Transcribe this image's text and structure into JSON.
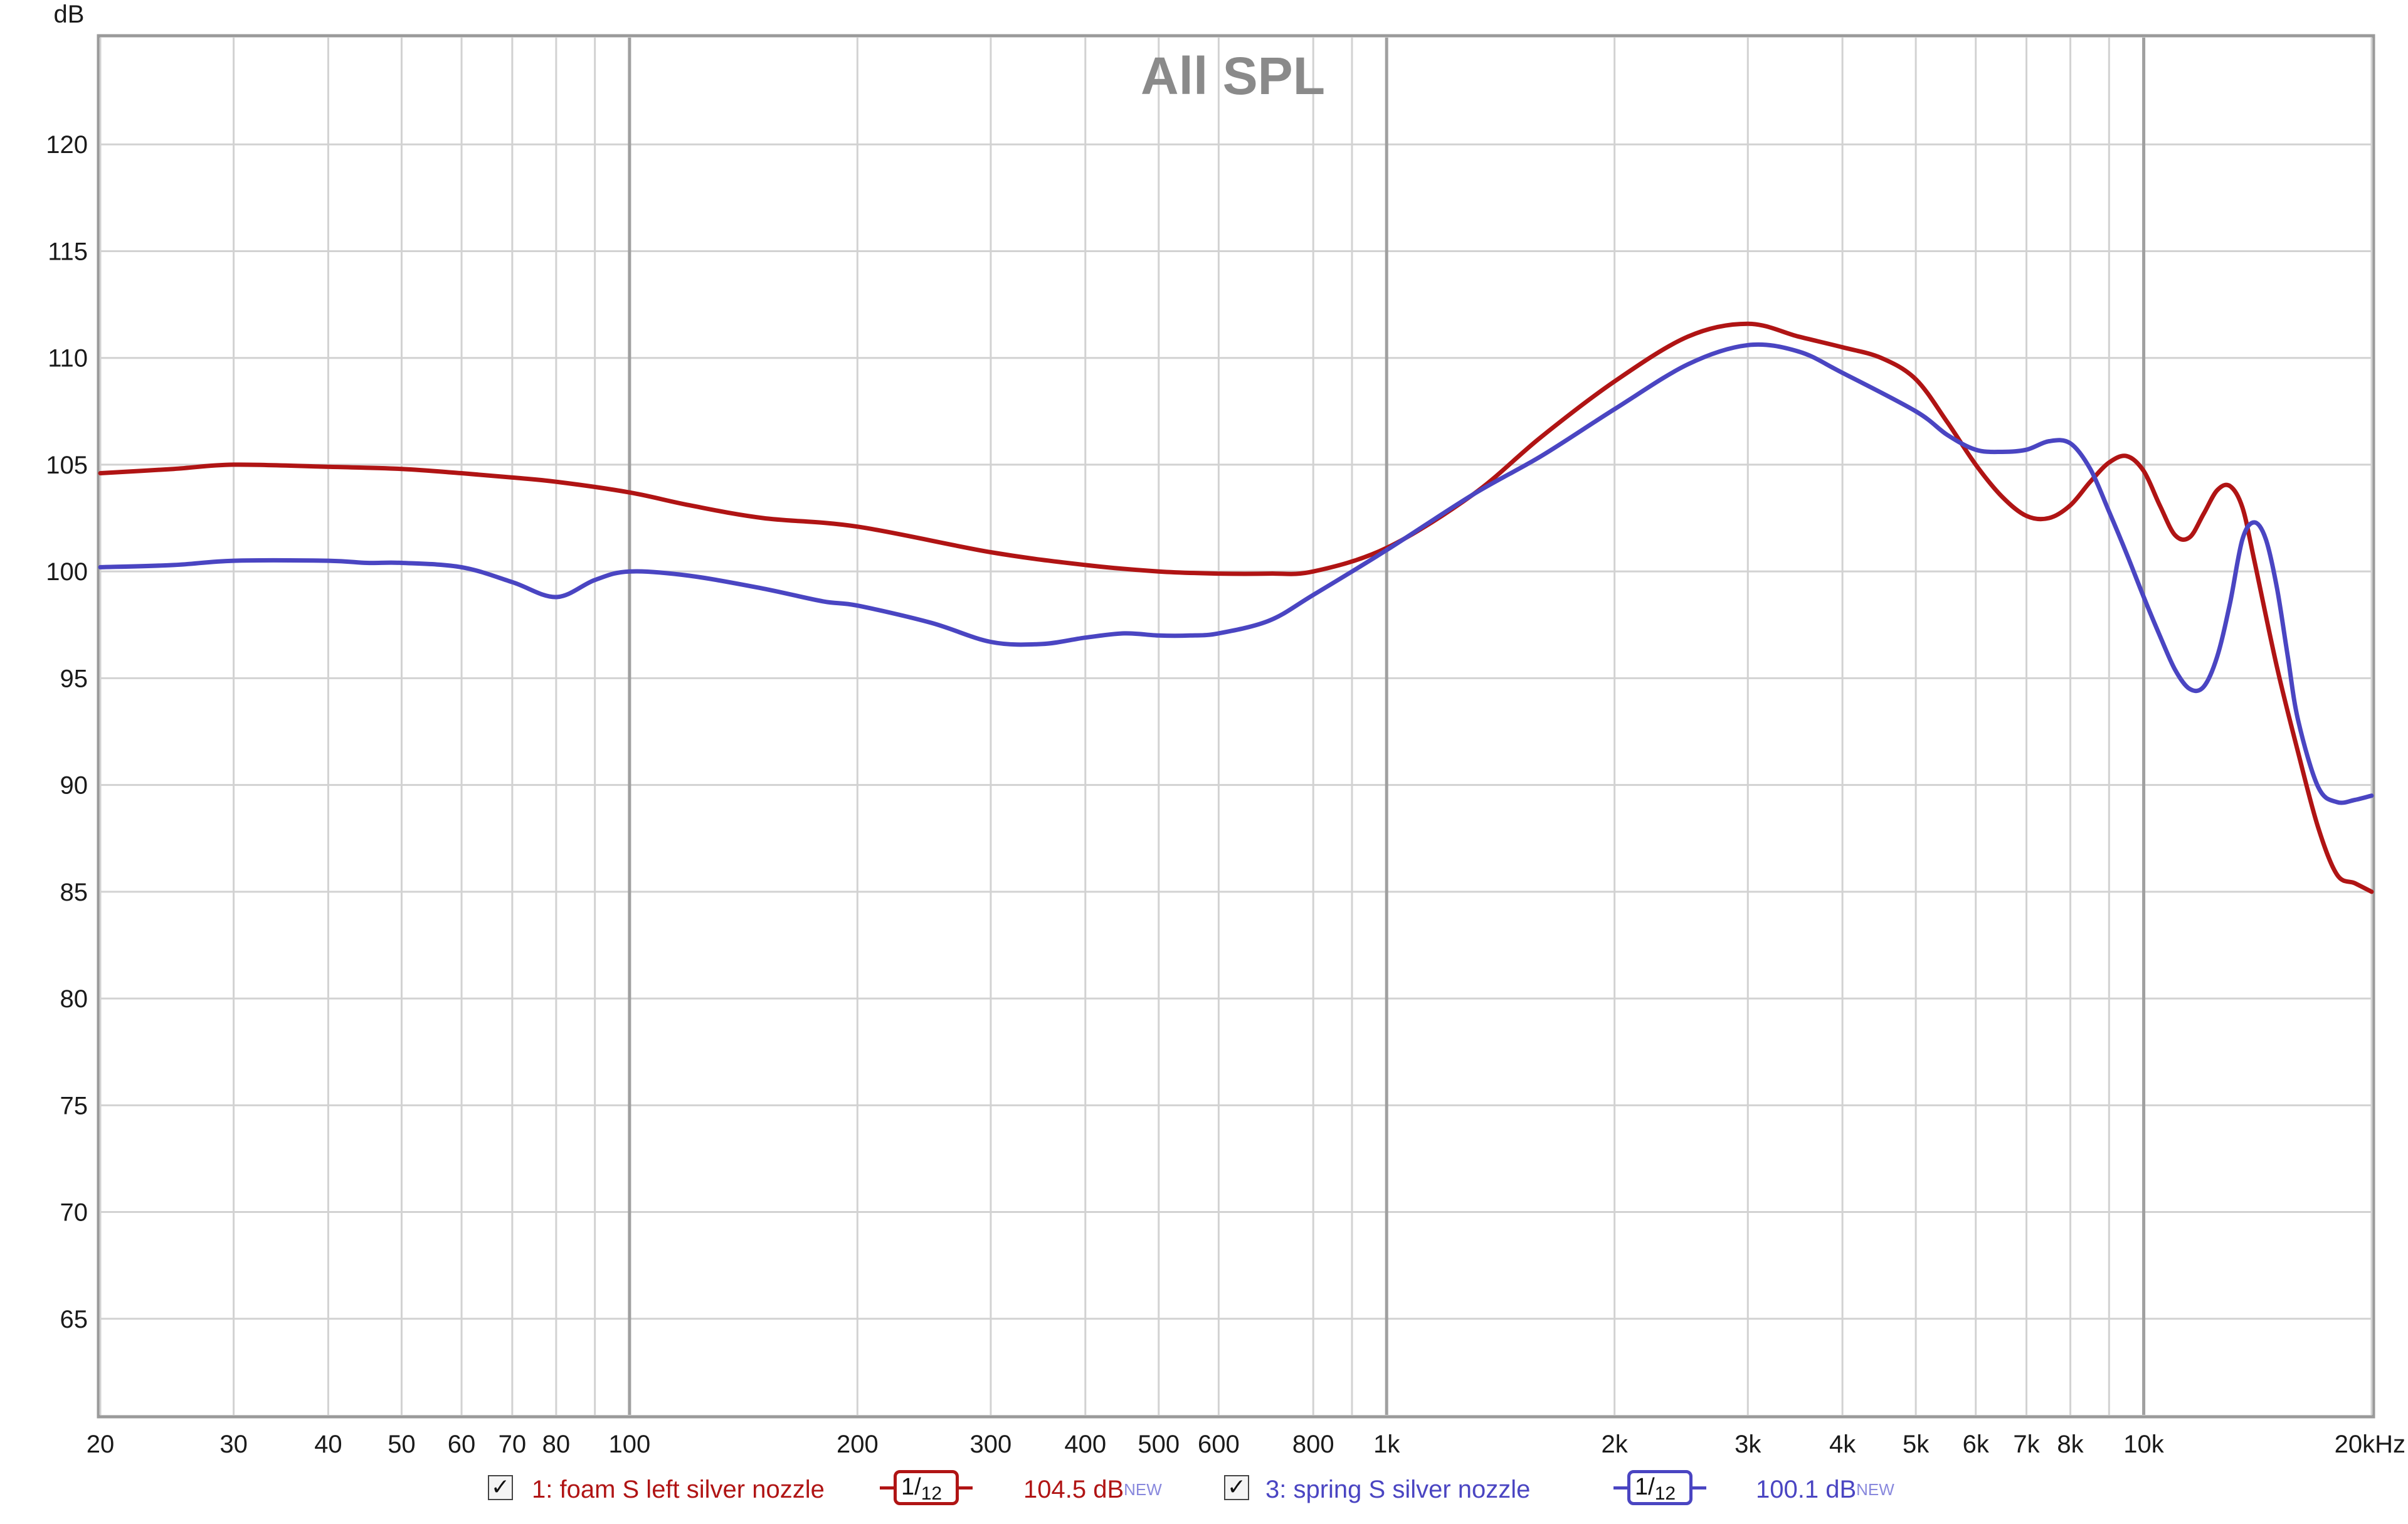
{
  "chart_data": {
    "type": "line",
    "title": "All SPL",
    "y_unit_label": "dB",
    "x_scale": "log",
    "xlim": [
      20,
      20000
    ],
    "ylim": [
      60.5,
      125
    ],
    "grid": true,
    "x_ticks": [
      {
        "v": 20,
        "label": "20"
      },
      {
        "v": 30,
        "label": "30"
      },
      {
        "v": 40,
        "label": "40"
      },
      {
        "v": 50,
        "label": "50"
      },
      {
        "v": 60,
        "label": "60"
      },
      {
        "v": 70,
        "label": "70"
      },
      {
        "v": 80,
        "label": "80"
      },
      {
        "v": 100,
        "label": "100"
      },
      {
        "v": 200,
        "label": "200"
      },
      {
        "v": 300,
        "label": "300"
      },
      {
        "v": 400,
        "label": "400"
      },
      {
        "v": 500,
        "label": "500"
      },
      {
        "v": 600,
        "label": "600"
      },
      {
        "v": 800,
        "label": "800"
      },
      {
        "v": 1000,
        "label": "1k"
      },
      {
        "v": 2000,
        "label": "2k"
      },
      {
        "v": 3000,
        "label": "3k"
      },
      {
        "v": 4000,
        "label": "4k"
      },
      {
        "v": 5000,
        "label": "5k"
      },
      {
        "v": 6000,
        "label": "6k"
      },
      {
        "v": 7000,
        "label": "7k"
      },
      {
        "v": 8000,
        "label": "8k"
      },
      {
        "v": 10000,
        "label": "10k"
      },
      {
        "v": 20000,
        "label": "20kHz"
      }
    ],
    "x_minor_grid": [
      90,
      900,
      9000
    ],
    "x_major_grid": [
      100,
      1000,
      10000
    ],
    "y_ticks": [
      65,
      70,
      75,
      80,
      85,
      90,
      95,
      100,
      105,
      110,
      115,
      120
    ],
    "series": [
      {
        "name": "1: foam S left silver nozzle",
        "color": "#b01414",
        "smoothing_num": "1",
        "smoothing_den": "12",
        "level": "104.5 dB",
        "level_tag": "NEW",
        "x": [
          20,
          25,
          30,
          40,
          50,
          60,
          70,
          80,
          100,
          120,
          150,
          200,
          300,
          400,
          500,
          600,
          700,
          800,
          1000,
          1300,
          1600,
          2000,
          2500,
          3000,
          3500,
          4000,
          4500,
          5000,
          5500,
          6000,
          6500,
          7000,
          7500,
          8000,
          8500,
          9000,
          9500,
          10000,
          10500,
          11000,
          11500,
          12000,
          12500,
          13000,
          13500,
          14000,
          15000,
          16000,
          17000,
          18000,
          19000,
          20000
        ],
        "y": [
          104.6,
          104.8,
          105.0,
          104.9,
          104.8,
          104.6,
          104.4,
          104.2,
          103.7,
          103.1,
          102.5,
          102.1,
          100.9,
          100.3,
          100.0,
          99.9,
          99.9,
          100.0,
          101.1,
          103.6,
          106.3,
          108.9,
          111.0,
          111.6,
          111.0,
          110.5,
          110.0,
          109.0,
          107.0,
          105.0,
          103.5,
          102.6,
          102.5,
          103.1,
          104.2,
          105.1,
          105.4,
          104.7,
          103.1,
          101.7,
          101.6,
          102.7,
          103.8,
          104.0,
          103.0,
          100.5,
          95.5,
          91.5,
          88.0,
          85.8,
          85.4,
          85.0
        ]
      },
      {
        "name": "3: spring S silver nozzle",
        "color": "#4a45c2",
        "smoothing_num": "1",
        "smoothing_den": "12",
        "level": "100.1 dB",
        "level_tag": "NEW",
        "x": [
          20,
          25,
          30,
          40,
          45,
          50,
          60,
          70,
          80,
          90,
          100,
          120,
          150,
          180,
          200,
          250,
          300,
          350,
          400,
          450,
          500,
          550,
          600,
          700,
          800,
          1000,
          1300,
          1600,
          2000,
          2500,
          3000,
          3500,
          4000,
          5000,
          5500,
          6000,
          6500,
          7000,
          7500,
          8000,
          8500,
          9000,
          9500,
          10000,
          10500,
          11000,
          11500,
          12000,
          12500,
          13000,
          13500,
          14000,
          14500,
          15000,
          15500,
          16000,
          17000,
          18000,
          19000,
          20000
        ],
        "y": [
          100.2,
          100.3,
          100.5,
          100.5,
          100.4,
          100.4,
          100.2,
          99.5,
          98.8,
          99.6,
          100.0,
          99.8,
          99.2,
          98.6,
          98.4,
          97.6,
          96.7,
          96.6,
          96.9,
          97.1,
          97.0,
          97.0,
          97.1,
          97.7,
          98.9,
          101.0,
          103.6,
          105.4,
          107.6,
          109.7,
          110.6,
          110.3,
          109.3,
          107.5,
          106.4,
          105.7,
          105.6,
          105.7,
          106.1,
          106.0,
          104.8,
          102.8,
          100.8,
          98.8,
          97.0,
          95.4,
          94.5,
          94.6,
          96.0,
          98.5,
          101.5,
          102.3,
          101.5,
          99.2,
          96.0,
          93.0,
          89.9,
          89.2,
          89.3,
          89.5
        ]
      }
    ]
  },
  "legend": {
    "check_glyph": "✓"
  }
}
